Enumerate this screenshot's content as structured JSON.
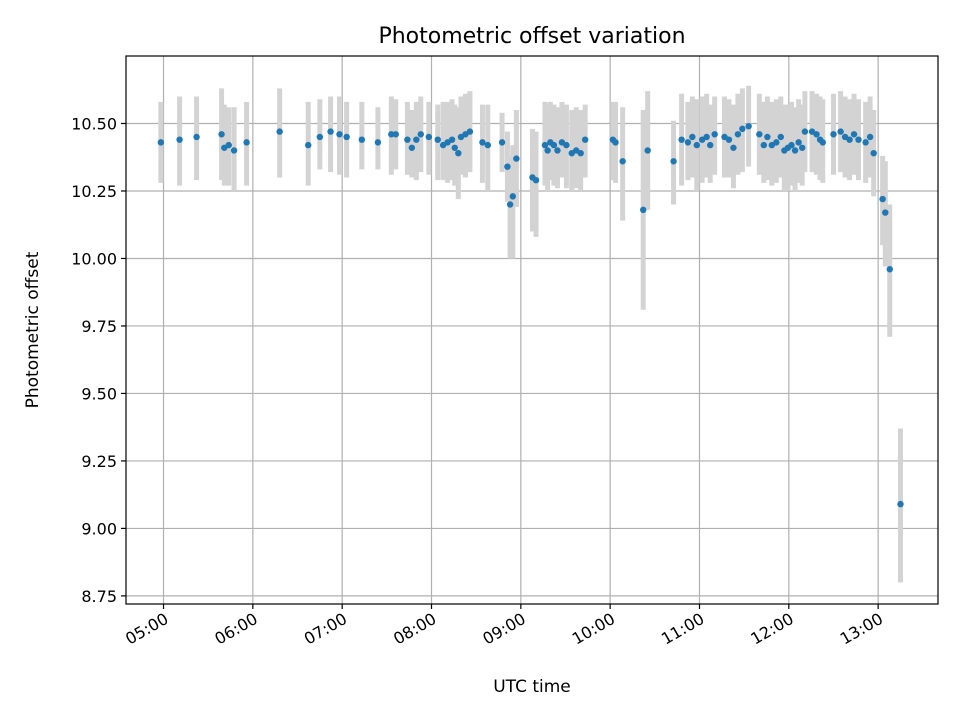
{
  "chart_data": {
    "type": "scatter",
    "title": "Photometric offset variation",
    "xlabel": "UTC time",
    "ylabel": "Photometric offset",
    "x_unit": "UTC hours",
    "xlim": [
      4.58,
      13.67
    ],
    "ylim": [
      8.72,
      10.75
    ],
    "x_ticks": [
      {
        "value": 5,
        "label": "05:00"
      },
      {
        "value": 6,
        "label": "06:00"
      },
      {
        "value": 7,
        "label": "07:00"
      },
      {
        "value": 8,
        "label": "08:00"
      },
      {
        "value": 9,
        "label": "09:00"
      },
      {
        "value": 10,
        "label": "10:00"
      },
      {
        "value": 11,
        "label": "11:00"
      },
      {
        "value": 12,
        "label": "12:00"
      },
      {
        "value": 13,
        "label": "13:00"
      }
    ],
    "y_ticks": [
      {
        "value": 8.75,
        "label": "8.75"
      },
      {
        "value": 9.0,
        "label": "9.00"
      },
      {
        "value": 9.25,
        "label": "9.25"
      },
      {
        "value": 9.5,
        "label": "9.50"
      },
      {
        "value": 9.75,
        "label": "9.75"
      },
      {
        "value": 10.0,
        "label": "10.00"
      },
      {
        "value": 10.25,
        "label": "10.25"
      },
      {
        "value": 10.5,
        "label": "10.50"
      }
    ],
    "grid": true,
    "marker_color": "#1f77b4",
    "errorbar_color": "#d3d3d3",
    "points": [
      [
        4.97,
        10.43,
        10.28,
        10.58
      ],
      [
        5.18,
        10.44,
        10.27,
        10.6
      ],
      [
        5.37,
        10.45,
        10.29,
        10.6
      ],
      [
        5.65,
        10.46,
        10.29,
        10.63
      ],
      [
        5.68,
        10.41,
        10.27,
        10.57
      ],
      [
        5.73,
        10.42,
        10.27,
        10.56
      ],
      [
        5.79,
        10.4,
        10.25,
        10.56
      ],
      [
        5.93,
        10.43,
        10.27,
        10.58
      ],
      [
        6.3,
        10.47,
        10.3,
        10.63
      ],
      [
        6.62,
        10.42,
        10.27,
        10.58
      ],
      [
        6.75,
        10.45,
        10.33,
        10.59
      ],
      [
        6.87,
        10.47,
        10.32,
        10.6
      ],
      [
        6.97,
        10.46,
        10.31,
        10.6
      ],
      [
        7.05,
        10.45,
        10.3,
        10.58
      ],
      [
        7.22,
        10.44,
        10.33,
        10.58
      ],
      [
        7.4,
        10.43,
        10.33,
        10.56
      ],
      [
        7.55,
        10.46,
        10.31,
        10.6
      ],
      [
        7.6,
        10.46,
        10.33,
        10.59
      ],
      [
        7.73,
        10.44,
        10.31,
        10.58
      ],
      [
        7.78,
        10.41,
        10.3,
        10.55
      ],
      [
        7.83,
        10.44,
        10.29,
        10.58
      ],
      [
        7.88,
        10.46,
        10.32,
        10.6
      ],
      [
        7.97,
        10.45,
        10.31,
        10.58
      ],
      [
        8.07,
        10.44,
        10.29,
        10.57
      ],
      [
        8.13,
        10.42,
        10.29,
        10.58
      ],
      [
        8.18,
        10.43,
        10.28,
        10.58
      ],
      [
        8.23,
        10.44,
        10.29,
        10.59
      ],
      [
        8.26,
        10.41,
        10.27,
        10.57
      ],
      [
        8.3,
        10.39,
        10.22,
        10.56
      ],
      [
        8.33,
        10.45,
        10.31,
        10.6
      ],
      [
        8.38,
        10.46,
        10.3,
        10.61
      ],
      [
        8.43,
        10.47,
        10.32,
        10.62
      ],
      [
        8.57,
        10.43,
        10.28,
        10.57
      ],
      [
        8.63,
        10.42,
        10.25,
        10.57
      ],
      [
        8.79,
        10.43,
        10.32,
        10.54
      ],
      [
        8.85,
        10.34,
        10.21,
        10.47
      ],
      [
        8.88,
        10.2,
        10.0,
        10.38
      ],
      [
        8.91,
        10.23,
        10.0,
        10.42
      ],
      [
        8.95,
        10.37,
        10.19,
        10.55
      ],
      [
        9.13,
        10.3,
        10.1,
        10.48
      ],
      [
        9.17,
        10.29,
        10.08,
        10.47
      ],
      [
        9.27,
        10.42,
        10.27,
        10.58
      ],
      [
        9.3,
        10.4,
        10.25,
        10.57
      ],
      [
        9.33,
        10.43,
        10.29,
        10.58
      ],
      [
        9.37,
        10.42,
        10.27,
        10.57
      ],
      [
        9.41,
        10.4,
        10.26,
        10.56
      ],
      [
        9.46,
        10.43,
        10.3,
        10.58
      ],
      [
        9.51,
        10.42,
        10.26,
        10.57
      ],
      [
        9.57,
        10.39,
        10.25,
        10.55
      ],
      [
        9.62,
        10.4,
        10.26,
        10.56
      ],
      [
        9.67,
        10.39,
        10.25,
        10.55
      ],
      [
        9.72,
        10.44,
        10.3,
        10.57
      ],
      [
        10.03,
        10.44,
        10.29,
        10.58
      ],
      [
        10.06,
        10.43,
        10.28,
        10.58
      ],
      [
        10.14,
        10.36,
        10.14,
        10.56
      ],
      [
        10.37,
        10.18,
        9.81,
        10.55
      ],
      [
        10.42,
        10.4,
        10.18,
        10.62
      ],
      [
        10.71,
        10.36,
        10.2,
        10.51
      ],
      [
        10.8,
        10.44,
        10.27,
        10.61
      ],
      [
        10.87,
        10.43,
        10.29,
        10.58
      ],
      [
        10.92,
        10.45,
        10.3,
        10.6
      ],
      [
        10.97,
        10.42,
        10.25,
        10.59
      ],
      [
        11.03,
        10.44,
        10.28,
        10.6
      ],
      [
        11.08,
        10.45,
        10.3,
        10.61
      ],
      [
        11.12,
        10.42,
        10.28,
        10.57
      ],
      [
        11.17,
        10.46,
        10.31,
        10.6
      ],
      [
        11.28,
        10.45,
        10.3,
        10.6
      ],
      [
        11.33,
        10.44,
        10.3,
        10.59
      ],
      [
        11.38,
        10.41,
        10.26,
        10.57
      ],
      [
        11.43,
        10.46,
        10.31,
        10.61
      ],
      [
        11.48,
        10.48,
        10.32,
        10.63
      ],
      [
        11.55,
        10.49,
        10.34,
        10.64
      ],
      [
        11.67,
        10.46,
        10.31,
        10.61
      ],
      [
        11.72,
        10.42,
        10.28,
        10.58
      ],
      [
        11.76,
        10.45,
        10.29,
        10.6
      ],
      [
        11.81,
        10.42,
        10.27,
        10.58
      ],
      [
        11.86,
        10.43,
        10.28,
        10.59
      ],
      [
        11.91,
        10.45,
        10.3,
        10.6
      ],
      [
        11.95,
        10.4,
        10.25,
        10.57
      ],
      [
        11.99,
        10.41,
        10.25,
        10.57
      ],
      [
        12.03,
        10.42,
        10.27,
        10.58
      ],
      [
        12.07,
        10.4,
        10.25,
        10.56
      ],
      [
        12.11,
        10.43,
        10.28,
        10.59
      ],
      [
        12.15,
        10.41,
        10.27,
        10.57
      ],
      [
        12.18,
        10.47,
        10.32,
        10.62
      ],
      [
        12.26,
        10.47,
        10.32,
        10.62
      ],
      [
        12.31,
        10.46,
        10.31,
        10.61
      ],
      [
        12.35,
        10.44,
        10.29,
        10.6
      ],
      [
        12.38,
        10.43,
        10.28,
        10.59
      ],
      [
        12.5,
        10.46,
        10.31,
        10.61
      ],
      [
        12.58,
        10.47,
        10.32,
        10.62
      ],
      [
        12.63,
        10.45,
        10.3,
        10.6
      ],
      [
        12.68,
        10.44,
        10.29,
        10.59
      ],
      [
        12.73,
        10.46,
        10.31,
        10.61
      ],
      [
        12.78,
        10.44,
        10.29,
        10.59
      ],
      [
        12.86,
        10.43,
        10.28,
        10.58
      ],
      [
        12.91,
        10.45,
        10.3,
        10.6
      ],
      [
        12.95,
        10.39,
        10.23,
        10.55
      ],
      [
        13.05,
        10.22,
        10.05,
        10.38
      ],
      [
        13.08,
        10.17,
        9.97,
        10.36
      ],
      [
        13.13,
        9.96,
        9.71,
        10.2
      ],
      [
        13.25,
        9.09,
        8.8,
        9.37
      ]
    ]
  }
}
